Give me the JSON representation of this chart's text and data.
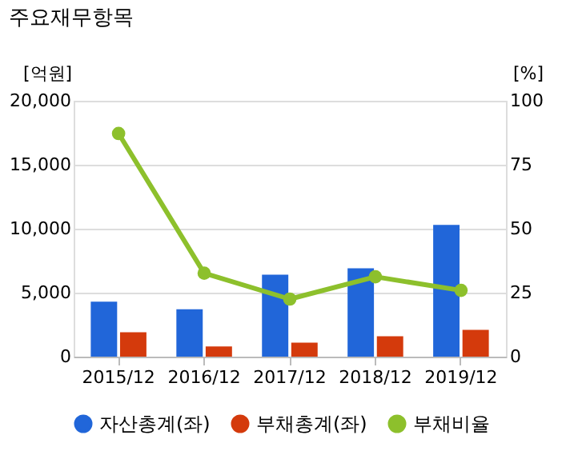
{
  "chart_data": {
    "type": "bar",
    "title": "주요재무항목",
    "ylabel": "[억원]",
    "y2label": "[%]",
    "categories": [
      "2015/12",
      "2016/12",
      "2017/12",
      "2018/12",
      "2019/12"
    ],
    "series": [
      {
        "name": "자산총계(좌)",
        "color": "#2166d9",
        "values": [
          4300,
          3700,
          6400,
          6900,
          10300
        ]
      },
      {
        "name": "부채총계(좌)",
        "color": "#d43a0c",
        "values": [
          1900,
          800,
          1100,
          1600,
          2100
        ]
      },
      {
        "name": "부채비율",
        "type": "line",
        "axis": "y2",
        "marker": "circle",
        "color": "#8dc02c",
        "values": [
          87.2,
          32.6,
          22.5,
          31.2,
          25.9
        ]
      }
    ],
    "ylim": [
      0,
      20000
    ],
    "yticks": [
      0,
      {
        "value": 5000,
        "label": "5,000"
      },
      {
        "value": 10000,
        "label": "10,000"
      },
      {
        "value": 15000,
        "label": "15,000"
      },
      {
        "value": 20000,
        "label": "20,000"
      }
    ],
    "y2lim": [
      0,
      100
    ],
    "y2ticks": [
      0,
      25,
      50,
      75,
      100
    ],
    "grid": "y",
    "legend": "bottom"
  }
}
